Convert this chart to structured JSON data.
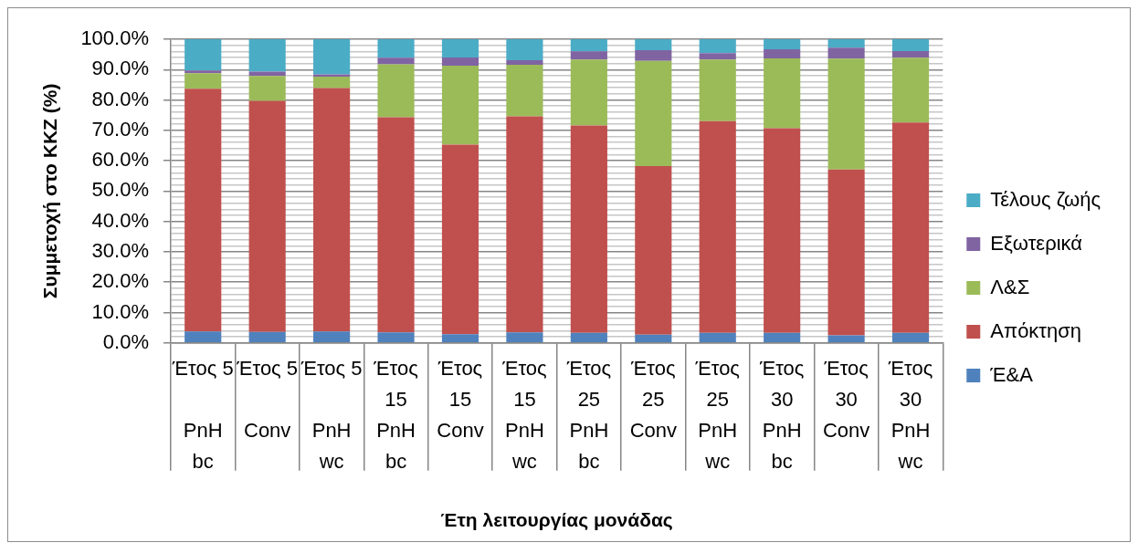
{
  "chart_data": {
    "type": "bar",
    "stacked": true,
    "xlabel": "Έτη λειτουργίας μονάδας",
    "ylabel": "Συμμετοχή στο ΚΚΖ (%)",
    "categories": [
      "Έτος 5\nPnH bc",
      "Έτος 5\nConv",
      "Έτος 5\nPnH wc",
      "Έτος 15\nPnH bc",
      "Έτος 15\nConv",
      "Έτος 15\nPnH wc",
      "Έτος 25\nPnH bc",
      "Έτος 25\nConv",
      "Έτος 25\nPnH wc",
      "Έτος 30\nPnH bc",
      "Έτος 30\nConv",
      "Έτος 30\nPnH wc"
    ],
    "series": [
      {
        "name": "Έ&Α",
        "color": "#4f81bd",
        "values": [
          3.8,
          3.6,
          3.8,
          3.5,
          2.9,
          3.5,
          3.3,
          2.7,
          3.3,
          3.3,
          2.5,
          3.3
        ]
      },
      {
        "name": "Απόκτηση",
        "color": "#c0504d",
        "values": [
          79.9,
          76.1,
          80.1,
          70.8,
          62.4,
          71.1,
          68.3,
          55.5,
          69.7,
          67.4,
          54.6,
          69.3
        ]
      },
      {
        "name": "Λ&Σ",
        "color": "#9bbb59",
        "values": [
          5.1,
          8.2,
          3.8,
          17.4,
          26.0,
          17.0,
          21.7,
          34.7,
          20.3,
          23.0,
          36.5,
          21.3
        ]
      },
      {
        "name": "Εξωτερικά",
        "color": "#8064a2",
        "values": [
          0.9,
          1.4,
          0.7,
          2.2,
          2.7,
          1.5,
          2.7,
          3.5,
          2.1,
          3.0,
          3.6,
          2.2
        ]
      },
      {
        "name": "Τέλους ζωής",
        "color": "#4bacc6",
        "values": [
          10.3,
          10.7,
          11.6,
          6.1,
          6.0,
          6.9,
          4.0,
          3.6,
          4.6,
          3.3,
          2.8,
          3.9
        ]
      }
    ],
    "ylim": [
      0,
      100
    ],
    "yticks": [
      {
        "value": 0,
        "label": "0.0%"
      },
      {
        "value": 2,
        "label": null
      },
      {
        "value": 4,
        "label": null
      },
      {
        "value": 6,
        "label": null
      },
      {
        "value": 8,
        "label": null
      },
      {
        "value": 10,
        "label": "10.0%"
      },
      {
        "value": 12,
        "label": null
      },
      {
        "value": 14,
        "label": null
      },
      {
        "value": 16,
        "label": null
      },
      {
        "value": 18,
        "label": null
      },
      {
        "value": 20,
        "label": "20.0%"
      },
      {
        "value": 22,
        "label": null
      },
      {
        "value": 24,
        "label": null
      },
      {
        "value": 26,
        "label": null
      },
      {
        "value": 28,
        "label": null
      },
      {
        "value": 30,
        "label": "30.0%"
      },
      {
        "value": 32,
        "label": null
      },
      {
        "value": 34,
        "label": null
      },
      {
        "value": 36,
        "label": null
      },
      {
        "value": 38,
        "label": null
      },
      {
        "value": 40,
        "label": "40.0%"
      },
      {
        "value": 42,
        "label": null
      },
      {
        "value": 44,
        "label": null
      },
      {
        "value": 46,
        "label": null
      },
      {
        "value": 48,
        "label": null
      },
      {
        "value": 50,
        "label": "50.0%"
      },
      {
        "value": 52,
        "label": null
      },
      {
        "value": 54,
        "label": null
      },
      {
        "value": 56,
        "label": null
      },
      {
        "value": 58,
        "label": null
      },
      {
        "value": 60,
        "label": "60.0%"
      },
      {
        "value": 62,
        "label": null
      },
      {
        "value": 64,
        "label": null
      },
      {
        "value": 66,
        "label": null
      },
      {
        "value": 68,
        "label": null
      },
      {
        "value": 70,
        "label": "70.0%"
      },
      {
        "value": 72,
        "label": null
      },
      {
        "value": 74,
        "label": null
      },
      {
        "value": 76,
        "label": null
      },
      {
        "value": 78,
        "label": null
      },
      {
        "value": 80,
        "label": "80.0%"
      },
      {
        "value": 82,
        "label": null
      },
      {
        "value": 84,
        "label": null
      },
      {
        "value": 86,
        "label": null
      },
      {
        "value": 88,
        "label": null
      },
      {
        "value": 90,
        "label": "90.0%"
      },
      {
        "value": 92,
        "label": null
      },
      {
        "value": 94,
        "label": null
      },
      {
        "value": 96,
        "label": null
      },
      {
        "value": 98,
        "label": null
      },
      {
        "value": 100,
        "label": "100.0%"
      }
    ],
    "grid": "y",
    "legend": "right"
  }
}
